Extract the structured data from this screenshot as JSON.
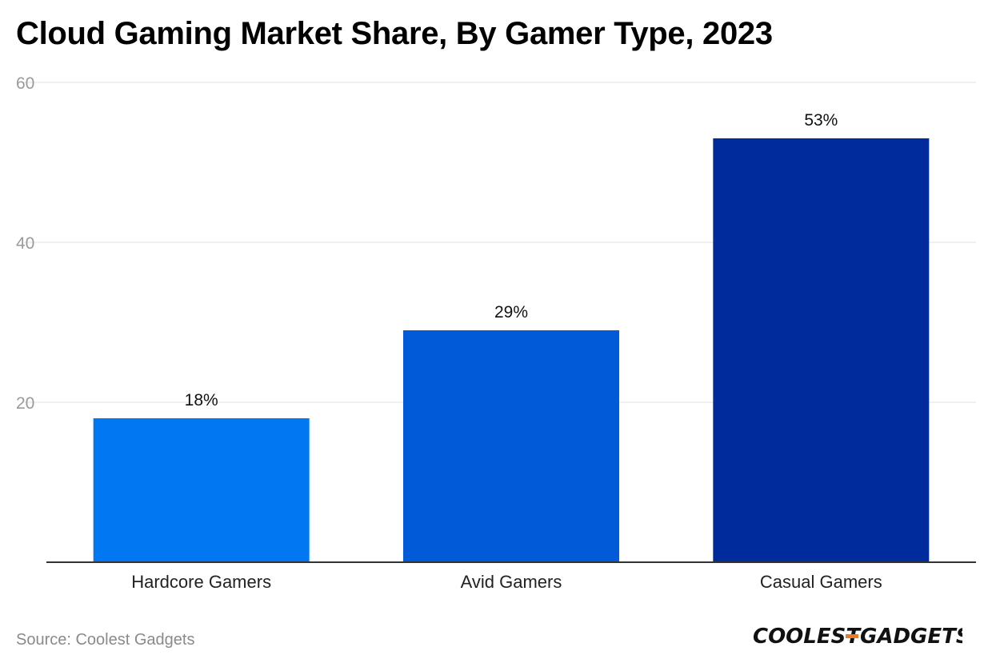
{
  "chart_data": {
    "type": "bar",
    "title": "Cloud Gaming Market Share, By Gamer Type, 2023",
    "categories": [
      "Hardcore Gamers",
      "Avid Gamers",
      "Casual Gamers"
    ],
    "values": [
      18,
      29,
      53
    ],
    "data_labels": [
      "18%",
      "29%",
      "53%"
    ],
    "bar_colors": [
      "#0178f2",
      "#015bd9",
      "#002b9d"
    ],
    "yticks": [
      20,
      40,
      60
    ],
    "ylim": [
      0,
      60
    ],
    "xlabel": "",
    "ylabel": "",
    "grid": true,
    "legend": "none"
  },
  "footer": {
    "source": "Source: Coolest Gadgets",
    "logo_text": "COOLEST-GADGETS"
  },
  "colors": {
    "grid": "#e2e2e2",
    "axis": "#333333",
    "tick_label": "#9a9a9a",
    "logo": "#111111",
    "logo_accent": "#f07a20"
  }
}
